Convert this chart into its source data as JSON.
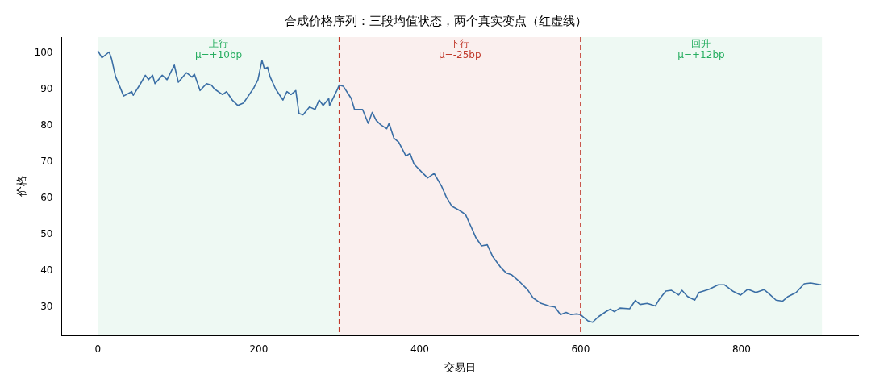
{
  "chart_data": {
    "type": "line",
    "title": "合成价格序列：三段均值状态，两个真实变点（红虚线）",
    "xlabel": "交易日",
    "ylabel": "价格",
    "xlim": [
      -45,
      945
    ],
    "xticks": [
      0,
      200,
      400,
      600,
      800
    ],
    "ylim": [
      22.3,
      104.3
    ],
    "yticks": [
      30,
      40,
      50,
      60,
      70,
      80,
      90,
      100
    ],
    "grid": false,
    "legend": false,
    "marker": "none",
    "line_style": "solid",
    "series": [
      {
        "color": "#3a6ea5",
        "x": [
          0,
          5,
          14,
          17,
          22,
          27,
          32,
          42,
          44,
          53,
          59,
          63,
          68,
          71,
          80,
          86,
          95,
          100,
          110,
          117,
          120,
          127,
          135,
          141,
          145,
          155,
          160,
          167,
          174,
          181,
          187,
          194,
          199,
          204,
          207,
          211,
          214,
          221,
          230,
          235,
          240,
          246,
          250,
          255,
          263,
          270,
          275,
          280,
          287,
          288,
          297,
          300,
          305,
          315,
          319,
          329,
          336,
          341,
          346,
          351,
          359,
          362,
          368,
          374,
          383,
          388,
          393,
          403,
          410,
          418,
          427,
          433,
          440,
          450,
          457,
          464,
          470,
          477,
          484,
          491,
          501,
          508,
          514,
          524,
          534,
          541,
          551,
          561,
          568,
          575,
          582,
          588,
          595,
          600,
          609,
          615,
          622,
          632,
          637,
          642,
          649,
          661,
          668,
          674,
          683,
          693,
          698,
          706,
          713,
          722,
          726,
          733,
          742,
          747,
          760,
          771,
          779,
          789,
          799,
          808,
          818,
          828,
          834,
          843,
          851,
          858,
          868,
          878,
          886,
          899
        ],
        "values": [
          100.5,
          98.6,
          100.2,
          98.3,
          93.4,
          90.8,
          88.1,
          89.3,
          88.3,
          91.5,
          93.8,
          92.6,
          93.8,
          91.5,
          93.8,
          92.6,
          96.6,
          91.9,
          94.5,
          93.3,
          94.1,
          89.6,
          91.5,
          91.1,
          90.0,
          88.5,
          89.3,
          87.0,
          85.5,
          86.2,
          88.1,
          90.4,
          92.6,
          97.9,
          95.6,
          96.0,
          93.4,
          90.0,
          87.0,
          89.3,
          88.5,
          89.6,
          83.3,
          82.9,
          85.1,
          84.4,
          87.0,
          85.5,
          87.4,
          85.5,
          89.6,
          91.1,
          90.8,
          87.4,
          84.4,
          84.4,
          80.6,
          83.6,
          81.4,
          80.3,
          79.1,
          80.6,
          76.5,
          75.4,
          71.6,
          72.3,
          69.4,
          67.1,
          65.6,
          66.8,
          63.4,
          60.4,
          57.8,
          56.6,
          55.5,
          52.1,
          49.1,
          46.9,
          47.2,
          43.9,
          40.9,
          39.4,
          39.0,
          37.1,
          34.9,
          32.6,
          31.1,
          30.4,
          30.1,
          28.0,
          28.6,
          28.0,
          28.2,
          28.0,
          26.3,
          25.9,
          27.4,
          28.9,
          29.5,
          28.8,
          29.8,
          29.6,
          31.9,
          30.8,
          31.1,
          30.4,
          32.3,
          34.5,
          34.7,
          33.4,
          34.7,
          33.0,
          32.0,
          34.1,
          35.0,
          36.2,
          36.2,
          34.5,
          33.4,
          35.0,
          34.1,
          34.9,
          33.8,
          32.0,
          31.7,
          33.0,
          34.1,
          36.5,
          36.7,
          36.2
        ]
      }
    ],
    "bands": [
      {
        "axis": "x",
        "from": 0,
        "to": 300,
        "label": "上行\nμ=+10bp",
        "color": "#27ae60"
      },
      {
        "axis": "x",
        "from": 300,
        "to": 600,
        "label": "下行\nμ=-25bp",
        "color": "#c0392b"
      },
      {
        "axis": "x",
        "from": 600,
        "to": 900,
        "label": "回升\nμ=+12bp",
        "color": "#27ae60"
      }
    ],
    "ref_lines": [
      {
        "axis": "x",
        "value": 300,
        "color": "#c0392b",
        "line_style": "dashed"
      },
      {
        "axis": "x",
        "value": 600,
        "color": "#c0392b",
        "line_style": "dashed"
      }
    ]
  }
}
